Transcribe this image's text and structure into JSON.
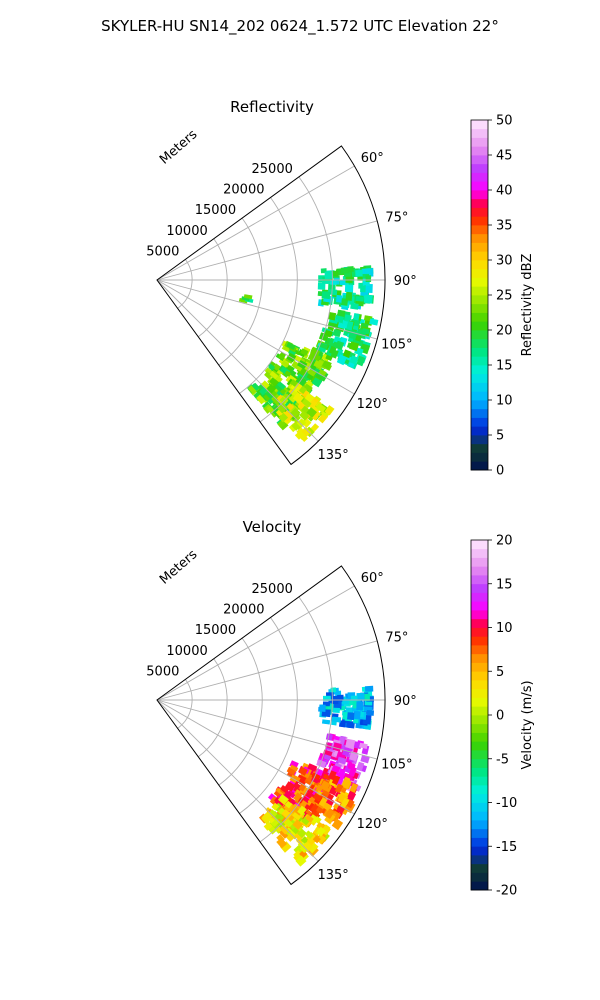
{
  "figure": {
    "title": "SKYLER-HU  SN14_202  0624_1.572 UTC Elevation 22°"
  },
  "chart_data": [
    {
      "type": "polar-sector",
      "title": "Reflectivity",
      "radial_label": "Meters",
      "radial_ticks": [
        5000,
        10000,
        15000,
        20000,
        25000
      ],
      "radial_tick_labels": [
        "5000",
        "10000",
        "15000",
        "20000",
        "25000"
      ],
      "r_range": [
        0,
        32500
      ],
      "theta_range_deg": [
        54,
        144
      ],
      "theta_ticks_deg": [
        60,
        75,
        90,
        105,
        120,
        135
      ],
      "theta_tick_labels": [
        "60°",
        "75°",
        "90°",
        "105°",
        "120°",
        "135°"
      ],
      "grid": true,
      "colorbar": {
        "label": "Reflectivity dBZ",
        "range": [
          0,
          50
        ],
        "ticks": [
          0,
          5,
          10,
          15,
          20,
          25,
          30,
          35,
          40,
          45,
          50
        ],
        "tick_labels": [
          "0",
          "5",
          "10",
          "15",
          "20",
          "25",
          "30",
          "35",
          "40",
          "45",
          "50"
        ]
      },
      "echo_regions": [
        {
          "r_range": [
            20000,
            27000
          ],
          "theta_range": [
            113,
            139
          ],
          "value": 22
        },
        {
          "r_range": [
            24000,
            30500
          ],
          "theta_range": [
            126,
            137
          ],
          "value": 26
        },
        {
          "r_range": [
            24500,
            31000
          ],
          "theta_range": [
            99,
            113
          ],
          "value": 18
        },
        {
          "r_range": [
            23000,
            30000
          ],
          "theta_range": [
            86,
            97
          ],
          "value": 16
        },
        {
          "r_range": [
            12000,
            13000
          ],
          "theta_range": [
            99,
            103
          ],
          "value": 20
        }
      ]
    },
    {
      "type": "polar-sector",
      "title": "Velocity",
      "radial_label": "Meters",
      "radial_ticks": [
        5000,
        10000,
        15000,
        20000,
        25000
      ],
      "radial_tick_labels": [
        "5000",
        "10000",
        "15000",
        "20000",
        "25000"
      ],
      "r_range": [
        0,
        32500
      ],
      "theta_range_deg": [
        54,
        144
      ],
      "theta_ticks_deg": [
        60,
        75,
        90,
        105,
        120,
        135
      ],
      "theta_tick_labels": [
        "60°",
        "75°",
        "90°",
        "105°",
        "120°",
        "135°"
      ],
      "grid": true,
      "colorbar": {
        "label": "Velocity (m/s)",
        "range": [
          -20,
          20
        ],
        "ticks": [
          -20,
          -15,
          -10,
          -5,
          0,
          5,
          10,
          15,
          20
        ],
        "tick_labels": [
          "-20",
          "-15",
          "-10",
          "-5",
          "0",
          "5",
          "10",
          "15",
          "20"
        ]
      },
      "echo_regions": [
        {
          "r_range": [
            21000,
            27500
          ],
          "theta_range": [
            112,
            130
          ],
          "value": 9
        },
        {
          "r_range": [
            22000,
            30500
          ],
          "theta_range": [
            126,
            138
          ],
          "value": 3
        },
        {
          "r_range": [
            24500,
            30500
          ],
          "theta_range": [
            101,
            114
          ],
          "value": 14
        },
        {
          "r_range": [
            26000,
            31000
          ],
          "theta_range": [
            112,
            124
          ],
          "value": 7
        },
        {
          "r_range": [
            23000,
            30000
          ],
          "theta_range": [
            86,
            97
          ],
          "value": -11
        }
      ]
    }
  ]
}
